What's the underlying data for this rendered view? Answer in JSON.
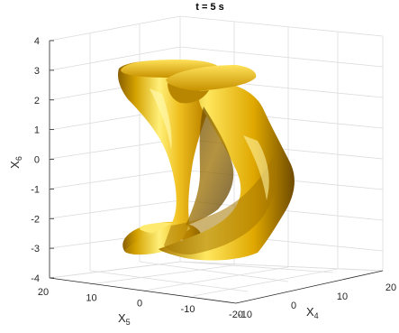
{
  "chart_data": {
    "type": "isosurface-3d",
    "title": "t = 5 s",
    "xlabel": "X",
    "xlabel_sub": "4",
    "ylabel": "X",
    "ylabel_sub": "5",
    "zlabel": "X",
    "zlabel_sub": "6",
    "x_ticks": [
      "-10",
      "0",
      "10",
      "20"
    ],
    "y_ticks": [
      "20",
      "10",
      "0",
      "-10",
      "-20"
    ],
    "z_ticks": [
      "4",
      "3",
      "2",
      "1",
      "0",
      "-1",
      "-2",
      "-3",
      "-4"
    ],
    "xlim": [
      -10,
      20
    ],
    "ylim": [
      -20,
      20
    ],
    "zlim": [
      -4,
      4
    ],
    "grid": true,
    "surface_color": "#e6b800"
  }
}
